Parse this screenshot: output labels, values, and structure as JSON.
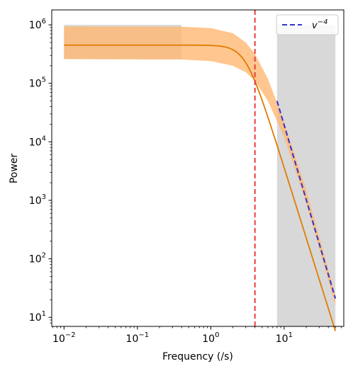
{
  "chart_data": {
    "type": "line",
    "title": "",
    "xlabel": "Frequency (/s)",
    "ylabel": "Power",
    "xscale": "log",
    "yscale": "log",
    "xlim": [
      0.0068,
      65
    ],
    "ylim": [
      7,
      1800000
    ],
    "xticks": [
      {
        "base": "10",
        "exp": "−2",
        "value": 0.01
      },
      {
        "base": "10",
        "exp": "−1",
        "value": 0.1
      },
      {
        "base": "10",
        "exp": "0",
        "value": 1
      },
      {
        "base": "10",
        "exp": "1",
        "value": 10
      }
    ],
    "yticks": [
      {
        "base": "10",
        "exp": "1",
        "value": 10
      },
      {
        "base": "10",
        "exp": "2",
        "value": 100
      },
      {
        "base": "10",
        "exp": "3",
        "value": 1000
      },
      {
        "base": "10",
        "exp": "4",
        "value": 10000
      },
      {
        "base": "10",
        "exp": "5",
        "value": 100000
      },
      {
        "base": "10",
        "exp": "6",
        "value": 1000000
      }
    ],
    "shaded_regions": [
      {
        "x": [
          0.01,
          0.4
        ],
        "y": [
          260000,
          1000000
        ]
      },
      {
        "x": [
          8.0,
          50.0
        ],
        "y": [
          7,
          1000000
        ]
      }
    ],
    "vertical_line": {
      "x": 4.0,
      "color": "#e8403a"
    },
    "model_curve": {
      "color": "#e07b00",
      "plateau": 450000,
      "knee_frequency": 3.0,
      "slope": -4,
      "x_range": [
        0.01,
        50
      ]
    },
    "confidence_band": {
      "color": "#ffb873",
      "lower": [
        [
          0.01,
          260000
        ],
        [
          0.4,
          255000
        ],
        [
          1.0,
          240000
        ],
        [
          2.0,
          200000
        ],
        [
          3.0,
          155000
        ],
        [
          4.0,
          110000
        ],
        [
          6.0,
          50000
        ],
        [
          10.0,
          12000
        ],
        [
          20.0,
          900
        ],
        [
          50.0,
          16
        ]
      ],
      "upper": [
        [
          0.01,
          940000
        ],
        [
          0.4,
          930000
        ],
        [
          1.0,
          880000
        ],
        [
          2.0,
          720000
        ],
        [
          3.0,
          500000
        ],
        [
          4.0,
          320000
        ],
        [
          6.0,
          120000
        ],
        [
          10.0,
          22000
        ],
        [
          20.0,
          1500
        ],
        [
          50.0,
          24
        ]
      ]
    },
    "series": [
      {
        "name": "v⁻⁴",
        "style": "dashed",
        "color": "#3333cc",
        "x": [
          8.0,
          50.0
        ],
        "y": [
          50000,
          21
        ]
      }
    ],
    "legend": {
      "position": "top-right",
      "entries": [
        {
          "base": "v",
          "exp": "−4",
          "color": "#3333cc",
          "style": "dashed"
        }
      ]
    },
    "grid": false
  }
}
